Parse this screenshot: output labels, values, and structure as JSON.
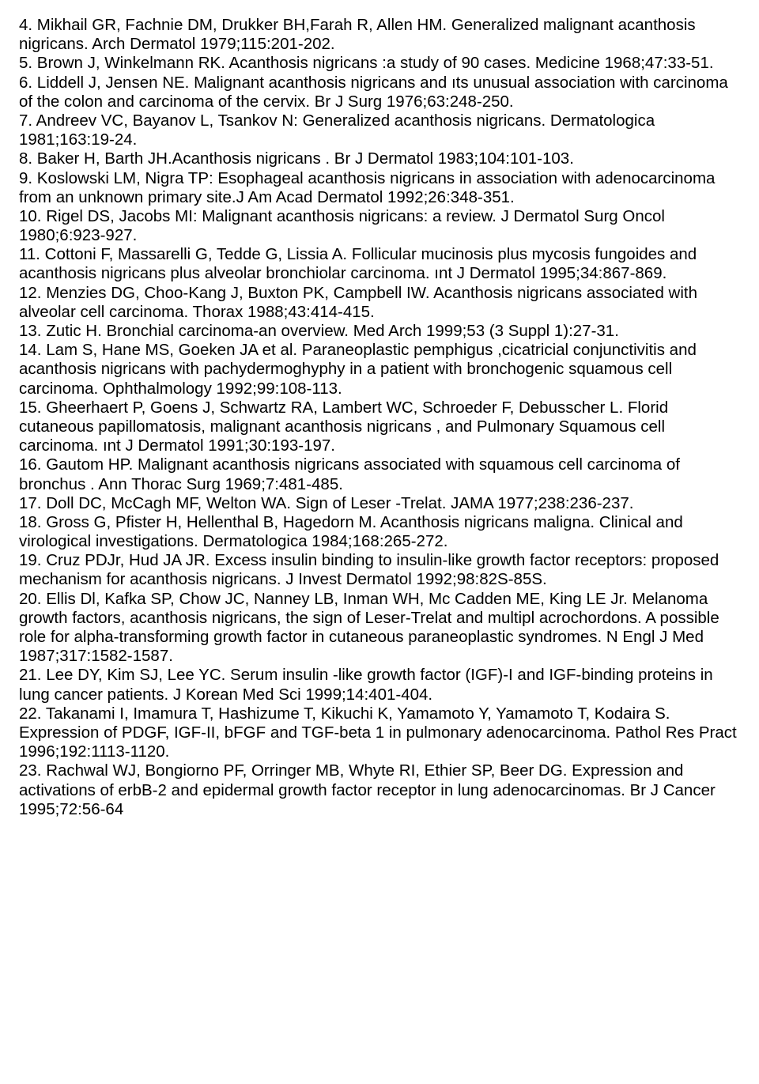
{
  "references": [
    "4. Mikhail GR, Fachnie DM, Drukker BH,Farah R, Allen HM. Generalized malignant acanthosis nigricans. Arch Dermatol 1979;115:201-202.",
    "5. Brown J, Winkelmann RK. Acanthosis nigricans :a study of 90 cases. Medicine 1968;47:33-51.",
    "6. Liddell J, Jensen NE. Malignant acanthosis nigricans and ıts unusual association with carcinoma of the colon and carcinoma of the cervix. Br J Surg 1976;63:248-250.",
    "7. Andreev VC, Bayanov L, Tsankov N: Generalized acanthosis nigricans. Dermatologica 1981;163:19-24.",
    "8. Baker H, Barth JH.Acanthosis nigricans . Br J Dermatol 1983;104:101-103.",
    "9. Koslowski LM, Nigra TP: Esophageal acanthosis nigricans in association with adenocarcinoma from an unknown primary site.J Am Acad Dermatol 1992;26:348-351.",
    "10. Rigel DS, Jacobs MI: Malignant acanthosis nigricans: a review. J Dermatol Surg Oncol 1980;6:923-927.",
    "11. Cottoni F, Massarelli G, Tedde G, Lissia A. Follicular mucinosis plus mycosis fungoides and acanthosis nigricans plus alveolar bronchiolar carcinoma. ınt J Dermatol 1995;34:867-869.",
    "12. Menzies DG, Choo-Kang J, Buxton PK, Campbell IW. Acanthosis nigricans associated with alveolar cell carcinoma. Thorax 1988;43:414-415.",
    "13. Zutic H. Bronchial carcinoma-an overview. Med Arch 1999;53 (3 Suppl 1):27-31.",
    "14. Lam S, Hane MS, Goeken JA et al. Paraneoplastic pemphigus ,cicatricial conjunctivitis and acanthosis nigricans with pachydermoghyphy in a patient with bronchogenic squamous cell carcinoma. Ophthalmology 1992;99:108-113.",
    "15. Gheerhaert P, Goens J, Schwartz RA, Lambert WC, Schroeder F, Debusscher L. Florid cutaneous papillomatosis, malignant acanthosis nigricans , and Pulmonary Squamous cell carcinoma. ınt J Dermatol 1991;30:193-197.",
    "16. Gautom HP. Malignant acanthosis nigricans associated with squamous cell carcinoma of bronchus . Ann Thorac Surg 1969;7:481-485.",
    "17. Doll DC, McCagh MF, Welton WA. Sign of Leser -Trelat. JAMA 1977;238:236-237.",
    "18. Gross G, Pfister H, Hellenthal B, Hagedorn M. Acanthosis nigricans maligna. Clinical and virological investigations. Dermatologica 1984;168:265-272.",
    "19. Cruz PDJr, Hud JA JR. Excess insulin binding to insulin-like growth factor receptors: proposed mechanism for acanthosis nigricans. J Invest Dermatol 1992;98:82S-85S.",
    "20. Ellis Dl, Kafka SP, Chow JC, Nanney LB, Inman WH, Mc Cadden ME, King LE Jr. Melanoma growth factors, acanthosis nigricans, the sign of Leser-Trelat and multipl acrochordons. A possible role for alpha-transforming growth factor in cutaneous paraneoplastic syndromes. N Engl J Med 1987;317:1582-1587.",
    "21. Lee DY, Kim SJ, Lee YC. Serum insulin -like growth factor (IGF)-I and IGF-binding proteins in lung cancer patients. J Korean Med Sci 1999;14:401-404.",
    "22. Takanami I, Imamura T, Hashizume T, Kikuchi K, Yamamoto Y, Yamamoto T, Kodaira S. Expression of PDGF, IGF-II, bFGF and TGF-beta 1 in pulmonary adenocarcinoma. Pathol Res Pract 1996;192:1113-1120.",
    "23. Rachwal WJ, Bongiorno PF, Orringer MB, Whyte RI, Ethier SP, Beer DG. Expression and activations of erbB-2 and epidermal growth factor receptor in lung adenocarcinomas. Br J Cancer 1995;72:56-64"
  ]
}
